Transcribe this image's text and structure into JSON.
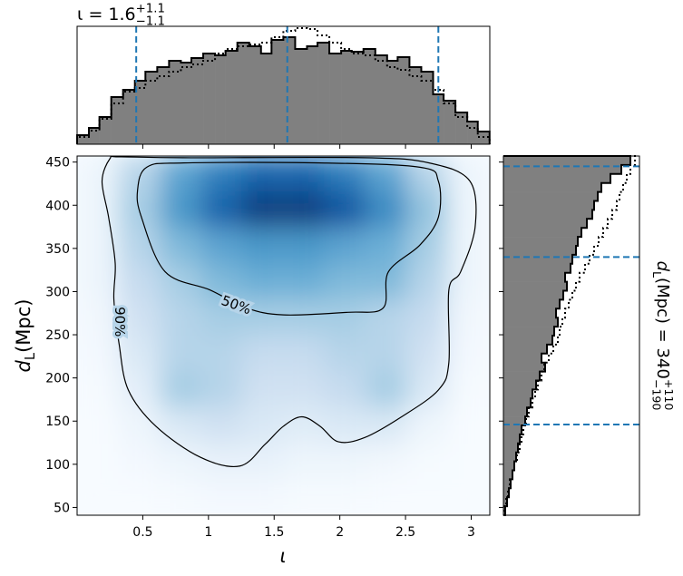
{
  "chart_data": {
    "type": "corner",
    "top_title": {
      "main": "ι = 1.6",
      "upper": "+1.1",
      "lower": "−1.1"
    },
    "right_title": {
      "main": "d",
      "sub": "L",
      "rest": " (Mpc) = 340",
      "upper": "+110",
      "lower": "−190"
    },
    "x_label": "ι",
    "y_label": {
      "main": "d",
      "sub": "L",
      "rest": " (Mpc)"
    },
    "xlim": [
      0,
      3.1416
    ],
    "xticks": [
      0.5,
      1.0,
      1.5,
      2.0,
      2.5,
      3.0
    ],
    "ylim": [
      41,
      457
    ],
    "yticks": [
      50,
      100,
      150,
      200,
      250,
      300,
      350,
      400,
      450
    ],
    "density": {
      "x": [
        0.16,
        0.47,
        0.79,
        1.1,
        1.41,
        1.73,
        2.04,
        2.36,
        2.67,
        2.98
      ],
      "y": [
        436,
        395,
        353,
        311,
        270,
        228,
        187,
        145,
        103,
        62
      ],
      "values": [
        [
          0.05,
          0.3,
          0.55,
          0.7,
          0.8,
          0.8,
          0.7,
          0.55,
          0.3,
          0.05
        ],
        [
          0.05,
          0.35,
          0.6,
          0.8,
          0.95,
          0.95,
          0.85,
          0.65,
          0.4,
          0.05
        ],
        [
          0.05,
          0.3,
          0.45,
          0.55,
          0.6,
          0.6,
          0.55,
          0.5,
          0.35,
          0.05
        ],
        [
          0.05,
          0.25,
          0.35,
          0.45,
          0.5,
          0.5,
          0.45,
          0.45,
          0.3,
          0.05
        ],
        [
          0.03,
          0.2,
          0.3,
          0.35,
          0.35,
          0.35,
          0.35,
          0.3,
          0.25,
          0.03
        ],
        [
          0.02,
          0.15,
          0.3,
          0.3,
          0.25,
          0.25,
          0.3,
          0.3,
          0.2,
          0.02
        ],
        [
          0.01,
          0.1,
          0.35,
          0.3,
          0.2,
          0.2,
          0.25,
          0.35,
          0.15,
          0.01
        ],
        [
          0,
          0.05,
          0.15,
          0.2,
          0.15,
          0.12,
          0.15,
          0.15,
          0.05,
          0
        ],
        [
          0,
          0.02,
          0.05,
          0.08,
          0.08,
          0.05,
          0.05,
          0.03,
          0.01,
          0
        ],
        [
          0,
          0,
          0.01,
          0.02,
          0.02,
          0.01,
          0.01,
          0,
          0,
          0
        ]
      ]
    },
    "contours": [
      {
        "label": "90%",
        "label_x": 0.32,
        "label_y": 265,
        "label_angle": 90,
        "x": [
          0.25,
          0.19,
          0.24,
          0.29,
          0.28,
          0.32,
          0.39,
          0.6,
          0.94,
          1.24,
          1.43,
          1.57,
          1.71,
          1.85,
          1.99,
          2.19,
          2.47,
          2.75,
          2.83,
          2.83,
          2.92,
          3.03,
          2.99,
          2.68,
          2.19,
          0.81,
          0.32
        ],
        "y": [
          454,
          428,
          386,
          333,
          291,
          239,
          186,
          144,
          108,
          98,
          123,
          144,
          155,
          144,
          126,
          131,
          155,
          186,
          218,
          302,
          323,
          375,
          428,
          449,
          455,
          455,
          456
        ]
      },
      {
        "label": "50%",
        "label_x": 1.21,
        "label_y": 284,
        "label_angle": 20,
        "x": [
          0.53,
          0.46,
          0.49,
          0.67,
          1.01,
          1.29,
          1.57,
          2.06,
          2.33,
          2.37,
          2.61,
          2.75,
          2.75,
          2.61,
          1.85,
          0.81
        ],
        "y": [
          444,
          417,
          386,
          323,
          302,
          281,
          273,
          276,
          281,
          323,
          354,
          386,
          428,
          444,
          449,
          449
        ]
      }
    ],
    "top_hist": {
      "ylim": [
        0,
        130
      ],
      "bins": [
        0,
        0.09,
        0.17,
        0.26,
        0.35,
        0.44,
        0.52,
        0.61,
        0.7,
        0.79,
        0.87,
        0.96,
        1.05,
        1.13,
        1.22,
        1.31,
        1.4,
        1.48,
        1.57,
        1.66,
        1.75,
        1.83,
        1.92,
        2.01,
        2.09,
        2.18,
        2.27,
        2.36,
        2.44,
        2.53,
        2.62,
        2.71,
        2.79,
        2.88,
        2.97,
        3.05,
        3.14
      ],
      "counts": [
        10,
        18,
        30,
        52,
        60,
        70,
        80,
        85,
        92,
        90,
        95,
        100,
        98,
        103,
        112,
        108,
        100,
        115,
        118,
        105,
        108,
        112,
        100,
        103,
        102,
        105,
        98,
        92,
        96,
        85,
        80,
        55,
        48,
        35,
        25,
        14
      ],
      "prior": [
        8,
        15,
        28,
        45,
        58,
        62,
        70,
        75,
        80,
        85,
        88,
        92,
        100,
        105,
        108,
        110,
        112,
        118,
        125,
        128,
        127,
        120,
        112,
        105,
        100,
        98,
        92,
        85,
        82,
        75,
        70,
        60,
        45,
        30,
        18,
        8
      ],
      "quantiles": [
        0.45,
        1.6,
        2.75
      ]
    },
    "right_hist": {
      "xlim": [
        0,
        150
      ],
      "bins": [
        41,
        51.4,
        61.8,
        72.2,
        82.6,
        93,
        103.4,
        113.8,
        124.2,
        134.6,
        145,
        155.4,
        165.8,
        176.2,
        186.6,
        197,
        207.4,
        217.8,
        228.2,
        238.6,
        249,
        259.4,
        269.8,
        280.2,
        290.6,
        301,
        311.4,
        321.8,
        332.2,
        342.6,
        353,
        363.4,
        373.8,
        384.2,
        394.6,
        405,
        415.4,
        425.8,
        436.2,
        446.6,
        457
      ],
      "counts": [
        2,
        4,
        6,
        8,
        10,
        12,
        14,
        16,
        18,
        20,
        24,
        26,
        30,
        32,
        36,
        40,
        46,
        42,
        48,
        54,
        56,
        60,
        58,
        62,
        66,
        70,
        68,
        74,
        76,
        80,
        82,
        86,
        92,
        98,
        100,
        104,
        108,
        118,
        130,
        140
      ],
      "prior": [
        1,
        3,
        5,
        7,
        10,
        12,
        15,
        18,
        20,
        22,
        25,
        28,
        32,
        35,
        38,
        42,
        45,
        50,
        55,
        60,
        62,
        65,
        68,
        72,
        76,
        80,
        84,
        90,
        95,
        100,
        105,
        110,
        115,
        120,
        125,
        128,
        132,
        136,
        140,
        145
      ],
      "quantiles": [
        146,
        340,
        445
      ]
    },
    "hist_color": "#808080",
    "quantile_color": "#1f77b4"
  }
}
